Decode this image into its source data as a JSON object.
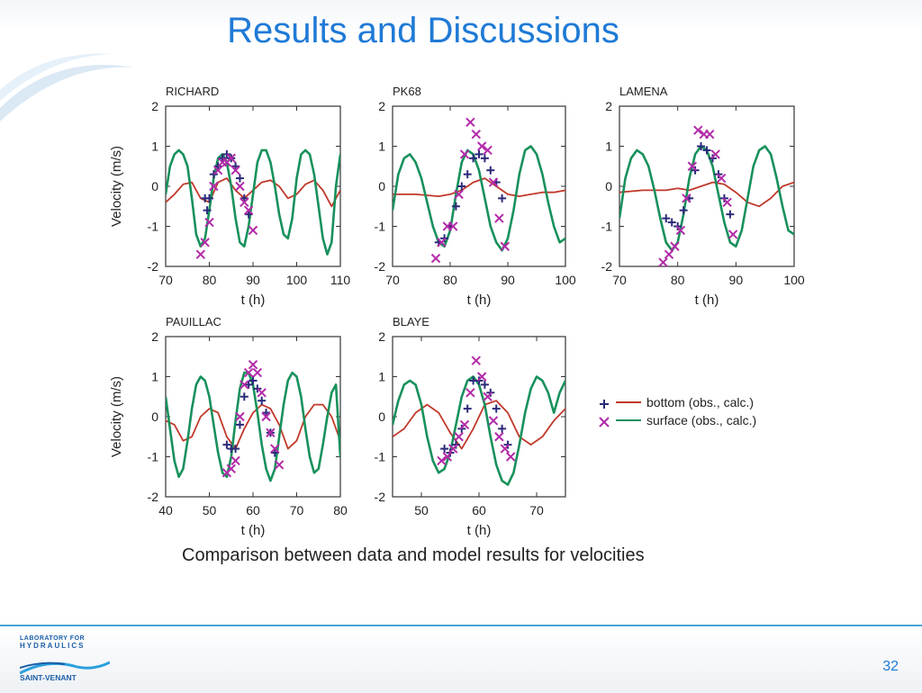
{
  "slide": {
    "title": "Results and Discussions",
    "caption": "Comparison between data and model results for  velocities",
    "page_number": "32"
  },
  "logo": {
    "line1": "LABORATORY FOR",
    "line2": "HYDRAULICS",
    "line3": "SAINT-VENANT"
  },
  "colors": {
    "title": "#1f7ad6",
    "bottom": "#c0392b",
    "surface": "#18915c",
    "obs_bottom": "#2c2a7a",
    "obs_surface": "#b22aa8"
  },
  "legend": {
    "bottom_label": "bottom (obs., calc.)",
    "surface_label": "surface (obs., calc.)"
  },
  "chart_data": [
    {
      "type": "line",
      "title": "RICHARD",
      "xlabel": "t (h)",
      "ylabel": "Velocity (m/s)",
      "xlim": [
        70,
        110
      ],
      "ylim": [
        -2,
        2
      ],
      "xticks": [
        70,
        80,
        90,
        100,
        110
      ],
      "yticks": [
        2,
        1,
        0,
        -1,
        -2
      ],
      "series": [
        {
          "name": "bottom (calc.)",
          "style": "line",
          "color": "#c0392b",
          "x": [
            70,
            72,
            74,
            76,
            78,
            80,
            82,
            84,
            86,
            88,
            90,
            92,
            94,
            96,
            98,
            100,
            102,
            104,
            106,
            108,
            110
          ],
          "y": [
            -0.4,
            -0.2,
            0.05,
            0.1,
            -0.3,
            -0.4,
            0.1,
            0.2,
            -0.1,
            -0.3,
            -0.1,
            0.1,
            0.15,
            0.0,
            -0.3,
            -0.2,
            0.05,
            0.15,
            -0.1,
            -0.5,
            -0.1
          ]
        },
        {
          "name": "surface (calc.)",
          "style": "line",
          "color": "#18915c",
          "x": [
            70,
            71,
            72,
            73,
            74,
            75,
            76,
            77,
            78,
            79,
            80,
            81,
            82,
            83,
            84,
            85,
            86,
            87,
            88,
            89,
            90,
            91,
            92,
            93,
            94,
            95,
            96,
            97,
            98,
            99,
            100,
            101,
            102,
            103,
            104,
            105,
            106,
            107,
            108,
            109,
            110
          ],
          "y": [
            -0.2,
            0.5,
            0.8,
            0.9,
            0.8,
            0.5,
            -0.3,
            -1.2,
            -1.5,
            -1.3,
            -0.6,
            0.2,
            0.7,
            0.8,
            0.6,
            0.0,
            -0.8,
            -1.4,
            -1.5,
            -1.0,
            -0.2,
            0.6,
            0.9,
            0.9,
            0.6,
            0.0,
            -0.7,
            -1.2,
            -1.3,
            -0.8,
            0.2,
            0.8,
            0.9,
            0.8,
            0.3,
            -0.5,
            -1.3,
            -1.7,
            -1.4,
            0.0,
            0.8
          ]
        },
        {
          "name": "bottom (obs.)",
          "style": "plus",
          "color": "#2c2a7a",
          "x": [
            79,
            79.5,
            80,
            81,
            82,
            83,
            84,
            85,
            86,
            87,
            88,
            89
          ],
          "y": [
            -0.3,
            -0.6,
            -0.3,
            0.3,
            0.5,
            0.7,
            0.8,
            0.7,
            0.5,
            0.2,
            -0.3,
            -0.7
          ]
        },
        {
          "name": "surface (obs.)",
          "style": "cross",
          "color": "#b22aa8",
          "x": [
            78,
            79,
            80,
            81,
            82,
            83,
            84,
            85,
            86,
            87,
            88,
            89,
            90
          ],
          "y": [
            -1.7,
            -1.4,
            -0.9,
            0.0,
            0.4,
            0.6,
            0.6,
            0.7,
            0.4,
            0.0,
            -0.4,
            -0.6,
            -1.1
          ]
        }
      ]
    },
    {
      "type": "line",
      "title": "PK68",
      "xlabel": "t (h)",
      "ylabel": "",
      "xlim": [
        70,
        100
      ],
      "ylim": [
        -2,
        2
      ],
      "xticks": [
        70,
        80,
        90,
        100
      ],
      "yticks": [
        2,
        1,
        0,
        -1,
        -2
      ],
      "series": [
        {
          "name": "bottom (calc.)",
          "style": "line",
          "color": "#c0392b",
          "x": [
            70,
            74,
            78,
            80,
            82,
            84,
            86,
            88,
            90,
            92,
            94,
            96,
            98,
            100
          ],
          "y": [
            -0.2,
            -0.2,
            -0.25,
            -0.2,
            -0.1,
            0.1,
            0.2,
            0.0,
            -0.2,
            -0.25,
            -0.2,
            -0.15,
            -0.15,
            -0.1
          ]
        },
        {
          "name": "surface (calc.)",
          "style": "line",
          "color": "#18915c",
          "x": [
            70,
            71,
            72,
            73,
            74,
            75,
            76,
            77,
            78,
            79,
            80,
            81,
            82,
            83,
            84,
            85,
            86,
            87,
            88,
            89,
            90,
            91,
            92,
            93,
            94,
            95,
            96,
            97,
            98,
            99,
            100
          ],
          "y": [
            -0.6,
            0.3,
            0.7,
            0.8,
            0.6,
            0.2,
            -0.4,
            -1.0,
            -1.4,
            -1.5,
            -1.1,
            -0.2,
            0.6,
            0.9,
            0.8,
            0.4,
            -0.3,
            -1.0,
            -1.4,
            -1.6,
            -1.3,
            -0.6,
            0.3,
            0.9,
            1.0,
            0.8,
            0.3,
            -0.4,
            -1.0,
            -1.4,
            -1.3
          ]
        },
        {
          "name": "bottom (obs.)",
          "style": "plus",
          "color": "#2c2a7a",
          "x": [
            78,
            79,
            80,
            81,
            82,
            83,
            84,
            85,
            86,
            87,
            88,
            89
          ],
          "y": [
            -1.4,
            -1.3,
            -1.0,
            -0.5,
            0.0,
            0.3,
            0.7,
            0.8,
            0.7,
            0.4,
            0.1,
            -0.3
          ]
        },
        {
          "name": "surface (obs.)",
          "style": "cross",
          "color": "#b22aa8",
          "x": [
            77.5,
            78.5,
            79.5,
            80.5,
            81.5,
            82.5,
            83.5,
            84.5,
            85.5,
            86.5,
            87.5,
            88.5,
            89.5
          ],
          "y": [
            -1.8,
            -1.4,
            -1.0,
            -1.0,
            -0.2,
            0.8,
            1.6,
            1.3,
            1.0,
            0.9,
            0.1,
            -0.8,
            -1.5
          ]
        }
      ]
    },
    {
      "type": "line",
      "title": "LAMENA",
      "xlabel": "t (h)",
      "ylabel": "",
      "xlim": [
        70,
        100
      ],
      "ylim": [
        -2,
        2
      ],
      "xticks": [
        70,
        80,
        90,
        100
      ],
      "yticks": [
        2,
        1,
        0,
        -1,
        -2
      ],
      "series": [
        {
          "name": "bottom (calc.)",
          "style": "line",
          "color": "#c0392b",
          "x": [
            70,
            74,
            78,
            80,
            82,
            84,
            86,
            88,
            90,
            92,
            94,
            96,
            98,
            100
          ],
          "y": [
            -0.15,
            -0.1,
            -0.1,
            -0.05,
            -0.1,
            0.0,
            0.1,
            0.05,
            -0.15,
            -0.4,
            -0.5,
            -0.3,
            0.0,
            0.1
          ]
        },
        {
          "name": "surface (calc.)",
          "style": "line",
          "color": "#18915c",
          "x": [
            70,
            71,
            72,
            73,
            74,
            75,
            76,
            77,
            78,
            79,
            80,
            81,
            82,
            83,
            84,
            85,
            86,
            87,
            88,
            89,
            90,
            91,
            92,
            93,
            94,
            95,
            96,
            97,
            98,
            99,
            100
          ],
          "y": [
            -0.8,
            0.2,
            0.7,
            0.9,
            0.8,
            0.5,
            -0.1,
            -0.8,
            -1.4,
            -1.6,
            -1.4,
            -0.7,
            0.2,
            0.8,
            1.0,
            0.9,
            0.5,
            -0.2,
            -0.9,
            -1.4,
            -1.5,
            -1.1,
            -0.3,
            0.5,
            0.9,
            1.0,
            0.8,
            0.2,
            -0.5,
            -1.1,
            -1.2
          ]
        },
        {
          "name": "bottom (obs.)",
          "style": "plus",
          "color": "#2c2a7a",
          "x": [
            78,
            79,
            80,
            81,
            82,
            83,
            84,
            85,
            86,
            87,
            88,
            89
          ],
          "y": [
            -0.8,
            -0.9,
            -1.0,
            -0.6,
            -0.3,
            0.4,
            1.0,
            0.9,
            0.7,
            0.3,
            -0.3,
            -0.7
          ]
        },
        {
          "name": "surface (obs.)",
          "style": "cross",
          "color": "#b22aa8",
          "x": [
            77.5,
            78.5,
            79.5,
            80.5,
            81.5,
            82.5,
            83.5,
            84.5,
            85.5,
            86.5,
            87.5,
            88.5,
            89.5
          ],
          "y": [
            -1.9,
            -1.7,
            -1.5,
            -1.1,
            -0.3,
            0.5,
            1.4,
            1.3,
            1.3,
            0.8,
            0.2,
            -0.4,
            -1.2
          ]
        }
      ]
    },
    {
      "type": "line",
      "title": "PAUILLAC",
      "xlabel": "t (h)",
      "ylabel": "Velocity (m/s)",
      "xlim": [
        40,
        80
      ],
      "ylim": [
        -2,
        2
      ],
      "xticks": [
        40,
        50,
        60,
        70,
        80
      ],
      "yticks": [
        2,
        1,
        0,
        -1,
        -2
      ],
      "series": [
        {
          "name": "bottom (calc.)",
          "style": "line",
          "color": "#c0392b",
          "x": [
            40,
            42,
            44,
            46,
            48,
            50,
            52,
            54,
            56,
            58,
            60,
            62,
            64,
            66,
            68,
            70,
            72,
            74,
            76,
            78,
            80
          ],
          "y": [
            -0.1,
            -0.2,
            -0.6,
            -0.5,
            0.0,
            0.2,
            0.1,
            -0.5,
            -0.8,
            -0.3,
            0.1,
            0.3,
            0.2,
            -0.2,
            -0.8,
            -0.6,
            0.0,
            0.3,
            0.3,
            0.0,
            -0.6
          ]
        },
        {
          "name": "surface (calc.)",
          "style": "line",
          "color": "#18915c",
          "x": [
            40,
            41,
            42,
            43,
            44,
            45,
            46,
            47,
            48,
            49,
            50,
            51,
            52,
            53,
            54,
            55,
            56,
            57,
            58,
            59,
            60,
            61,
            62,
            63,
            64,
            65,
            66,
            67,
            68,
            69,
            70,
            71,
            72,
            73,
            74,
            75,
            76,
            77,
            78,
            79,
            80
          ],
          "y": [
            0.5,
            -0.3,
            -1.1,
            -1.5,
            -1.3,
            -0.6,
            0.2,
            0.8,
            1.0,
            0.9,
            0.5,
            -0.2,
            -0.9,
            -1.4,
            -1.5,
            -1.0,
            -0.1,
            0.7,
            1.1,
            1.1,
            0.8,
            0.1,
            -0.7,
            -1.3,
            -1.6,
            -1.3,
            -0.5,
            0.3,
            0.9,
            1.1,
            1.0,
            0.5,
            -0.3,
            -1.0,
            -1.4,
            -1.3,
            -0.7,
            0.0,
            0.6,
            0.8,
            -1.0
          ]
        },
        {
          "name": "bottom (obs.)",
          "style": "plus",
          "color": "#2c2a7a",
          "x": [
            54,
            55,
            56,
            57,
            58,
            59,
            60,
            61,
            62,
            63,
            64,
            65
          ],
          "y": [
            -0.7,
            -0.8,
            -0.8,
            -0.2,
            0.5,
            0.8,
            0.9,
            0.7,
            0.4,
            0.1,
            -0.4,
            -0.9
          ]
        },
        {
          "name": "surface (obs.)",
          "style": "cross",
          "color": "#b22aa8",
          "x": [
            54,
            55,
            56,
            57,
            58,
            59,
            60,
            61,
            62,
            63,
            64,
            65,
            66
          ],
          "y": [
            -1.4,
            -1.3,
            -1.1,
            0.0,
            0.8,
            1.1,
            1.3,
            1.1,
            0.6,
            0.0,
            -0.4,
            -0.8,
            -1.2
          ]
        }
      ]
    },
    {
      "type": "line",
      "title": "BLAYE",
      "xlabel": "t (h)",
      "ylabel": "",
      "xlim": [
        45,
        75
      ],
      "ylim": [
        -2,
        2
      ],
      "xticks": [
        50,
        60,
        70
      ],
      "yticks": [
        2,
        1,
        0,
        -1,
        -2
      ],
      "series": [
        {
          "name": "bottom (calc.)",
          "style": "line",
          "color": "#c0392b",
          "x": [
            45,
            47,
            49,
            51,
            53,
            55,
            57,
            59,
            61,
            63,
            65,
            67,
            69,
            71,
            73,
            75
          ],
          "y": [
            -0.5,
            -0.3,
            0.1,
            0.3,
            0.1,
            -0.4,
            -0.8,
            -0.3,
            0.3,
            0.4,
            0.1,
            -0.5,
            -0.7,
            -0.5,
            -0.1,
            0.2
          ]
        },
        {
          "name": "surface (calc.)",
          "style": "line",
          "color": "#18915c",
          "x": [
            45,
            46,
            47,
            48,
            49,
            50,
            51,
            52,
            53,
            54,
            55,
            56,
            57,
            58,
            59,
            60,
            61,
            62,
            63,
            64,
            65,
            66,
            67,
            68,
            69,
            70,
            71,
            72,
            73,
            74,
            75
          ],
          "y": [
            -0.2,
            0.4,
            0.8,
            0.9,
            0.8,
            0.3,
            -0.5,
            -1.1,
            -1.4,
            -1.3,
            -0.9,
            -0.2,
            0.5,
            0.9,
            1.0,
            0.8,
            0.3,
            -0.5,
            -1.2,
            -1.6,
            -1.7,
            -1.4,
            -0.7,
            0.1,
            0.7,
            1.0,
            0.9,
            0.6,
            0.1,
            0.6,
            0.9
          ]
        },
        {
          "name": "bottom (obs.)",
          "style": "plus",
          "color": "#2c2a7a",
          "x": [
            54,
            55,
            56,
            57,
            58,
            59,
            60,
            61,
            62,
            63,
            64,
            65
          ],
          "y": [
            -0.8,
            -0.9,
            -0.7,
            -0.3,
            0.2,
            0.9,
            0.9,
            0.8,
            0.6,
            0.2,
            -0.3,
            -0.7
          ]
        },
        {
          "name": "surface (obs.)",
          "style": "cross",
          "color": "#b22aa8",
          "x": [
            53.5,
            54.5,
            55.5,
            56.5,
            57.5,
            58.5,
            59.5,
            60.5,
            61.5,
            62.5,
            63.5,
            64.5,
            65.5
          ],
          "y": [
            -1.1,
            -1.0,
            -0.8,
            -0.5,
            -0.2,
            0.6,
            1.4,
            1.0,
            0.5,
            -0.1,
            -0.5,
            -0.8,
            -1.0
          ]
        }
      ]
    }
  ]
}
